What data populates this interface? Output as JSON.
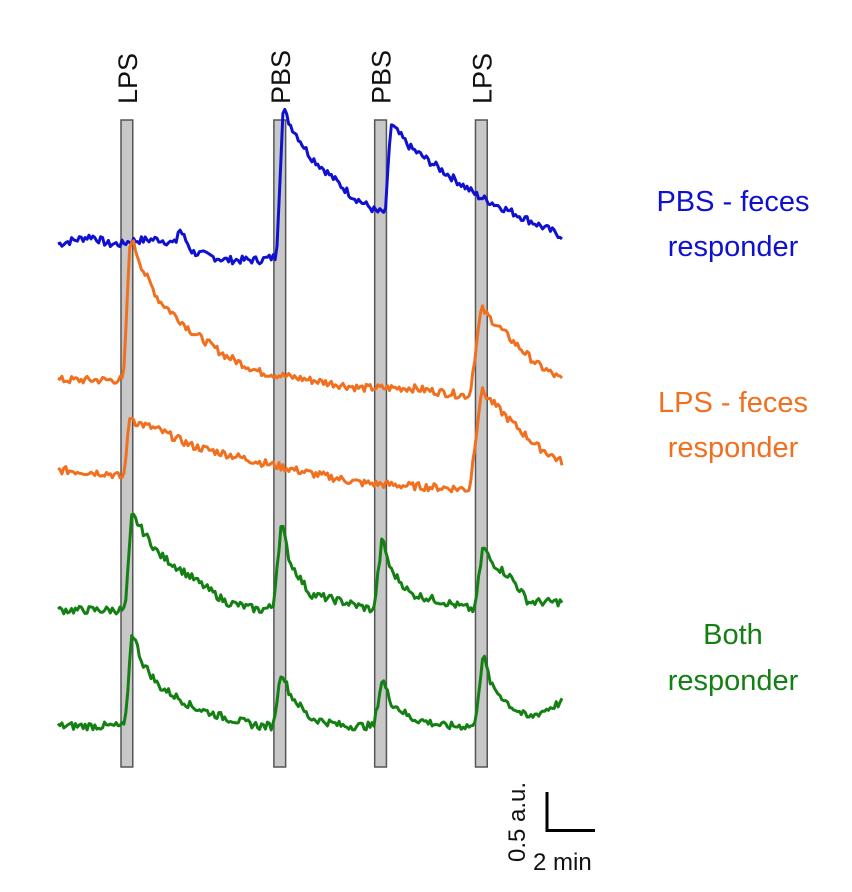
{
  "chart_data": {
    "type": "line",
    "description_free": true,
    "x_range_min": [
      0,
      30
    ],
    "stimuli": [
      {
        "label": "LPS",
        "start_min": 3.75,
        "end_min": 4.45
      },
      {
        "label": "PBS",
        "start_min": 12.85,
        "end_min": 13.55
      },
      {
        "label": "PBS",
        "start_min": 18.85,
        "end_min": 19.55
      },
      {
        "label": "LPS",
        "start_min": 24.85,
        "end_min": 25.55
      }
    ],
    "groups": [
      {
        "label_lines": [
          "PBS - feces",
          "responder"
        ],
        "color": "#1010d0"
      },
      {
        "label_lines": [
          "LPS - feces",
          "responder"
        ],
        "color": "#f07020"
      },
      {
        "label_lines": [
          "Both",
          "responder"
        ],
        "color": "#148014"
      }
    ],
    "series": [
      {
        "group": 0,
        "color": "#1010d0",
        "baseline": 0,
        "x": [
          0,
          2,
          3,
          3.8,
          4.3,
          6,
          7,
          7.2,
          8,
          10,
          12,
          13,
          13.4,
          13.8,
          15,
          16,
          17.5,
          19,
          19.5,
          19.8,
          21,
          23,
          25,
          26,
          28,
          30
        ],
        "y": [
          0.0,
          0.05,
          0.0,
          0.0,
          0.02,
          0.03,
          0.0,
          0.1,
          -0.05,
          -0.1,
          -0.1,
          -0.08,
          0.85,
          0.75,
          0.55,
          0.45,
          0.3,
          0.2,
          0.2,
          0.75,
          0.6,
          0.45,
          0.3,
          0.25,
          0.15,
          0.05
        ]
      },
      {
        "group": 1,
        "color": "#f07020",
        "baseline": 0,
        "x": [
          0,
          3,
          3.9,
          4.3,
          4.5,
          5,
          6,
          8,
          10,
          12,
          15,
          18,
          21,
          24.5,
          25.2,
          25.6,
          27,
          28.5,
          30
        ],
        "y": [
          0.0,
          0.0,
          0.0,
          0.9,
          0.85,
          0.7,
          0.5,
          0.3,
          0.15,
          0.05,
          0.0,
          -0.05,
          -0.05,
          -0.1,
          0.45,
          0.4,
          0.25,
          0.1,
          0.0
        ]
      },
      {
        "group": 1,
        "color": "#f07020",
        "baseline": 0,
        "x": [
          0,
          3,
          3.9,
          4.3,
          4.6,
          6,
          8,
          10,
          12,
          15,
          18,
          21,
          24.5,
          25.2,
          25.6,
          27,
          28.5,
          30
        ],
        "y": [
          0.0,
          -0.02,
          -0.05,
          0.35,
          0.3,
          0.25,
          0.15,
          0.1,
          0.05,
          -0.02,
          -0.08,
          -0.1,
          -0.12,
          0.5,
          0.45,
          0.3,
          0.15,
          0.05
        ]
      },
      {
        "group": 2,
        "color": "#148014",
        "baseline": 0,
        "x": [
          0,
          3.5,
          4.0,
          4.4,
          5,
          6,
          8,
          10,
          12,
          12.8,
          13.3,
          13.8,
          15,
          17,
          18.8,
          19.3,
          19.8,
          21,
          23,
          24.8,
          25.3,
          25.8,
          27,
          28,
          30
        ],
        "y": [
          0.0,
          0.0,
          0.0,
          0.6,
          0.5,
          0.35,
          0.2,
          0.05,
          0.0,
          0.02,
          0.55,
          0.3,
          0.1,
          0.05,
          0.0,
          0.45,
          0.25,
          0.1,
          0.05,
          0.0,
          0.4,
          0.3,
          0.2,
          0.05,
          0.05
        ]
      },
      {
        "group": 2,
        "color": "#148014",
        "baseline": 0,
        "x": [
          0,
          3.5,
          4.0,
          4.4,
          5,
          6,
          8,
          10,
          12,
          12.8,
          13.3,
          13.8,
          15,
          17,
          18.8,
          19.3,
          19.8,
          21,
          23,
          24.8,
          25.3,
          25.8,
          27,
          28,
          29,
          30
        ],
        "y": [
          0.0,
          0.0,
          0.0,
          0.6,
          0.4,
          0.25,
          0.12,
          0.05,
          0.0,
          0.0,
          0.35,
          0.2,
          0.05,
          0.0,
          0.0,
          0.3,
          0.15,
          0.05,
          0.0,
          0.0,
          0.45,
          0.25,
          0.12,
          0.05,
          0.1,
          0.15
        ]
      }
    ],
    "scale_bar": {
      "y_value": 0.5,
      "y_label": "0.5 a.u.",
      "x_value": 2,
      "x_label": "2 min"
    }
  }
}
